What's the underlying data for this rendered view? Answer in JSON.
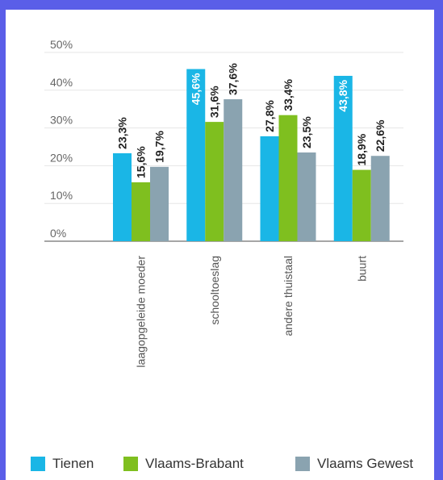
{
  "chart_data": {
    "type": "bar",
    "categories": [
      "laagopgeleide moeder",
      "schooltoeslag",
      "andere thuistaal",
      "buurt"
    ],
    "series": [
      {
        "name": "Tienen",
        "values": [
          23.3,
          45.6,
          27.8,
          43.8
        ],
        "labels": [
          "23,3%",
          "45,6%",
          "27,8%",
          "43,8%"
        ],
        "color": "#1ab6e6"
      },
      {
        "name": "Vlaams-Brabant",
        "values": [
          15.6,
          31.6,
          33.4,
          18.9
        ],
        "labels": [
          "15,6%",
          "31,6%",
          "33,4%",
          "18,9%"
        ],
        "color": "#7fbf1f"
      },
      {
        "name": "Vlaams Gewest",
        "values": [
          19.7,
          37.6,
          23.5,
          22.6
        ],
        "labels": [
          "19,7%",
          "37,6%",
          "23,5%",
          "22,6%"
        ],
        "color": "#8aa3b0"
      }
    ],
    "yticks": [
      "0%",
      "10%",
      "20%",
      "30%",
      "40%",
      "50%"
    ],
    "ylim": [
      0,
      50
    ],
    "grid": true,
    "legend_position": "bottom"
  }
}
